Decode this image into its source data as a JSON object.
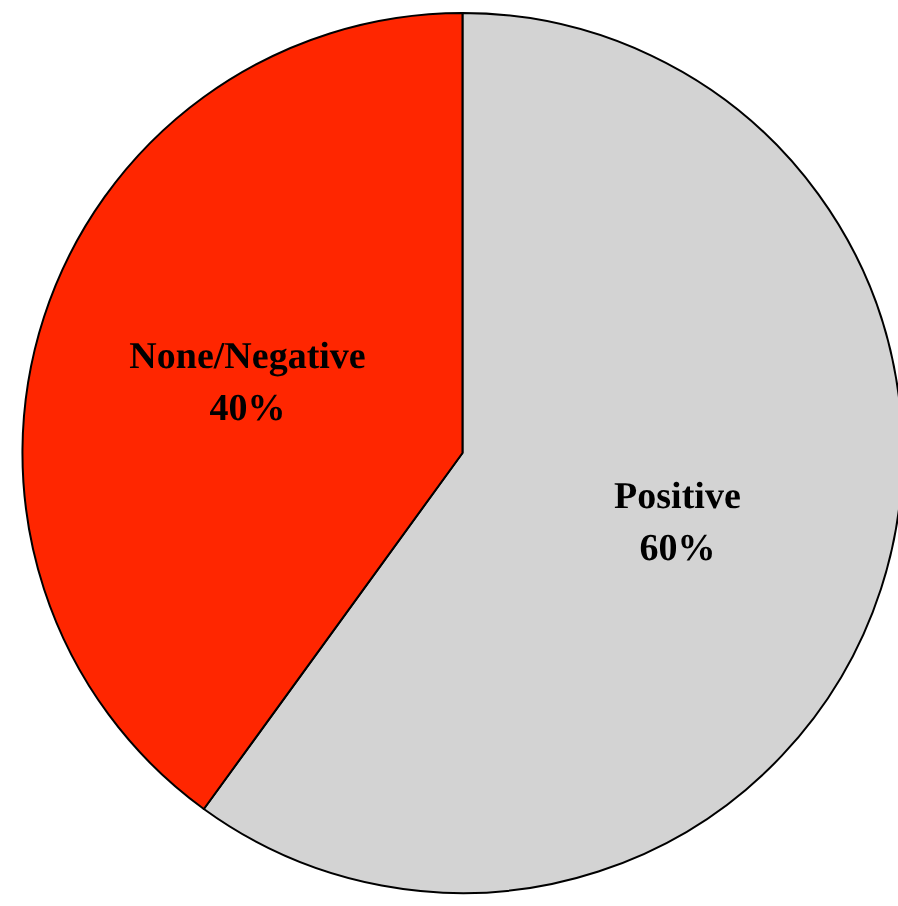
{
  "chart_data": {
    "type": "pie",
    "categories": [
      "Positive",
      "None/Negative"
    ],
    "values": [
      60,
      40
    ],
    "colors": [
      "#d3d3d3",
      "#ff2600"
    ],
    "value_labels": [
      "60%",
      "40%"
    ],
    "legend": false
  }
}
